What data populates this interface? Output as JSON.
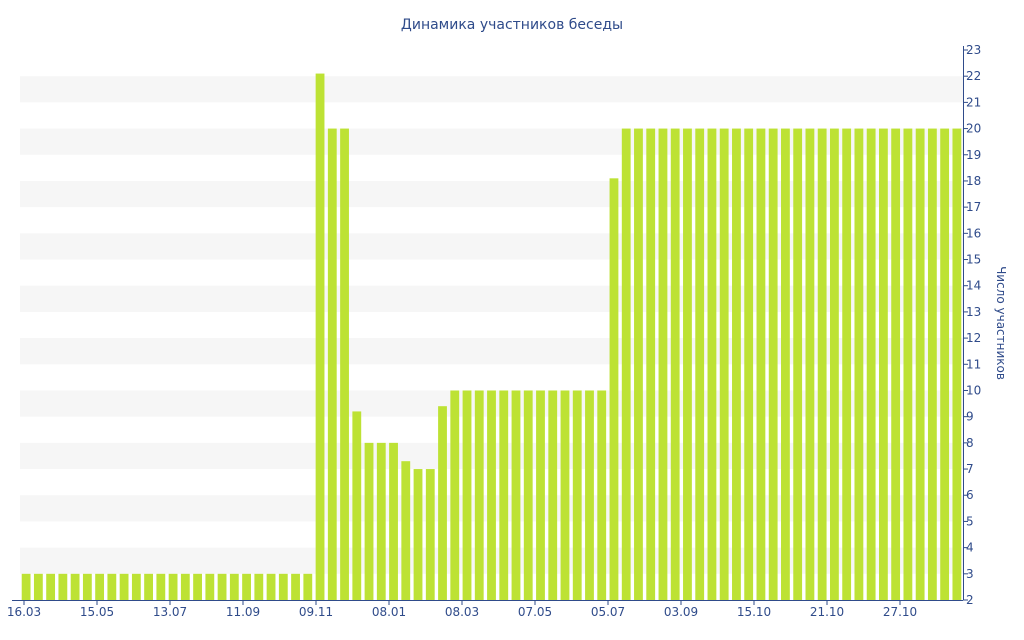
{
  "chart_data": {
    "type": "bar",
    "title": "Динамика участников беседы",
    "xlabel": "",
    "ylabel": "Число участников",
    "ylim": [
      2,
      23
    ],
    "yticks": [
      2,
      3,
      4,
      5,
      6,
      7,
      8,
      9,
      10,
      11,
      12,
      13,
      14,
      15,
      16,
      17,
      18,
      19,
      20,
      21,
      22,
      23
    ],
    "xtick_labels": [
      "16.03",
      "15.05",
      "13.07",
      "11.09",
      "09.11",
      "08.01",
      "08.03",
      "07.05",
      "05.07",
      "03.09",
      "15.10",
      "21.10",
      "27.10"
    ],
    "grid": "alternating horizontal bands",
    "colors": {
      "bar": "#bde234",
      "band": "#f6f6f6",
      "text": "#2f4b8a",
      "axis": "#2f4b8a"
    },
    "values": [
      3,
      3,
      3,
      3,
      3,
      3,
      3,
      3,
      3,
      3,
      3,
      3,
      3,
      3,
      3,
      3,
      3,
      3,
      3,
      3,
      3,
      3,
      3,
      3,
      22.1,
      20,
      20,
      9.2,
      8,
      8,
      8,
      7.3,
      7,
      7,
      9.4,
      10,
      10,
      10,
      10,
      10,
      10,
      10,
      10,
      10,
      10,
      10,
      10,
      10,
      18.1,
      20,
      20,
      20,
      20,
      20,
      20,
      20,
      20,
      20,
      20,
      20,
      20,
      20,
      20,
      20,
      20,
      20,
      20,
      20,
      20,
      20,
      20,
      20,
      20,
      20,
      20,
      20,
      20
    ]
  }
}
